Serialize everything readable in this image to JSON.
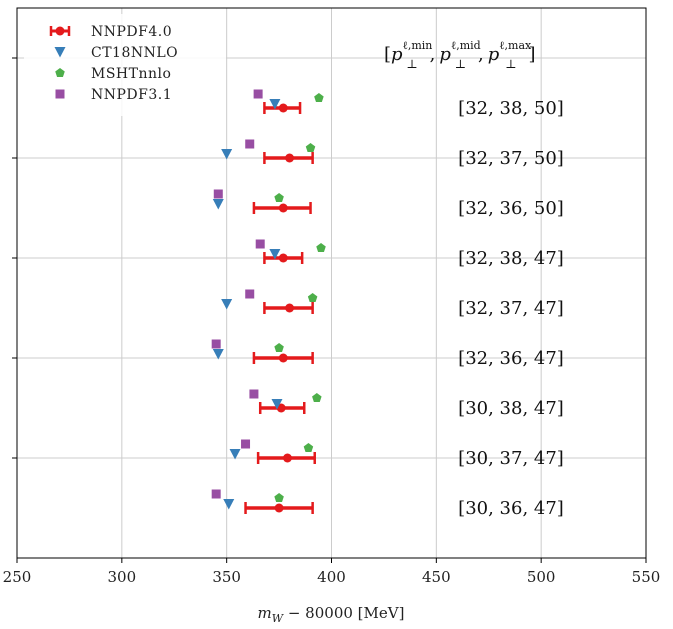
{
  "chart_data": {
    "type": "scatter",
    "subtype": "horizontal-errorbar-comparison",
    "xlabel_main": "m",
    "xlabel_sub": "W",
    "xlabel_rest": " − 80000 [MeV]",
    "xlim": [
      250,
      550
    ],
    "xticks": [
      250,
      300,
      350,
      400,
      450,
      500,
      550
    ],
    "grid": true,
    "legend_position": "top-left",
    "column_title": {
      "open": "[",
      "p": "p",
      "sub": "⊥",
      "sup_min": "ℓ,min",
      "sup_mid": "ℓ,mid",
      "sup_max": "ℓ,max",
      "sep": ",",
      "close": "]"
    },
    "rows": [
      "[32, 38, 50]",
      "[32, 37, 50]",
      "[32, 36, 50]",
      "[32, 38, 47]",
      "[32, 37, 47]",
      "[32, 36, 47]",
      "[30, 38, 47]",
      "[30, 37, 47]",
      "[30, 36, 47]"
    ],
    "series": [
      {
        "name": "NNPDF4.0",
        "color": "#e41a1c",
        "marker": "circle-errorbar",
        "values": [
          377,
          380,
          377,
          377,
          380,
          377,
          376,
          379,
          375
        ],
        "err_low": [
          368,
          368,
          363,
          368,
          368,
          363,
          366,
          365,
          359
        ],
        "err_high": [
          385,
          391,
          390,
          386,
          391,
          391,
          387,
          392,
          391
        ]
      },
      {
        "name": "CT18NNLO",
        "color": "#377eb8",
        "marker": "triangle-down",
        "values": [
          373,
          350,
          346,
          373,
          350,
          346,
          374,
          354,
          351
        ]
      },
      {
        "name": "MSHTnnlo",
        "color": "#4daf4a",
        "marker": "pentagon",
        "values": [
          394,
          390,
          375,
          395,
          391,
          375,
          393,
          389,
          375
        ]
      },
      {
        "name": "NNPDF3.1",
        "color": "#984ea3",
        "marker": "square",
        "values": [
          365,
          361,
          346,
          366,
          361,
          345,
          363,
          359,
          345
        ]
      }
    ]
  }
}
